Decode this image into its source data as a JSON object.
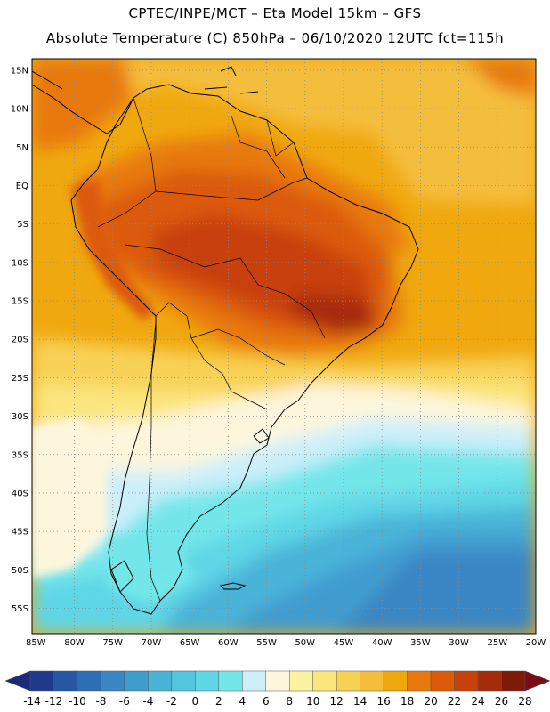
{
  "header": {
    "line1": "CPTEC/INPE/MCT –  Eta Model 15km – GFS",
    "line2": "Absolute Temperature (C) 850hPa – 06/10/2020 12UTC fct=115h"
  },
  "map": {
    "lat_labels": [
      "15N",
      "10N",
      "5N",
      "EQ",
      "5S",
      "10S",
      "15S",
      "20S",
      "25S",
      "30S",
      "35S",
      "40S",
      "45S",
      "50S",
      "55S"
    ],
    "lon_labels": [
      "85W",
      "80W",
      "75W",
      "70W",
      "65W",
      "60W",
      "55W",
      "50W",
      "45W",
      "40W",
      "35W",
      "30W",
      "25W",
      "20W"
    ],
    "lat_range": [
      16.5,
      -58.3
    ],
    "lon_range": [
      -85.5,
      -20
    ]
  },
  "colorbar": {
    "ticks": [
      "-14",
      "-12",
      "-10",
      "-8",
      "-6",
      "-4",
      "-2",
      "0",
      "2",
      "4",
      "6",
      "8",
      "10",
      "12",
      "14",
      "16",
      "18",
      "20",
      "22",
      "24",
      "26",
      "28"
    ],
    "colors": [
      "#1f3a8c",
      "#2557a3",
      "#2d6eb4",
      "#3b86c4",
      "#3f9ccf",
      "#49b3d8",
      "#53c5e0",
      "#5fd6e6",
      "#73e6ea",
      "#cceffa",
      "#fdf6dd",
      "#fcf3a0",
      "#fbe57d",
      "#f8d257",
      "#f4be3c",
      "#f0a80f",
      "#e8790e",
      "#dc5a0a",
      "#c8410a",
      "#a52c0a",
      "#7d1a0a"
    ],
    "under_color": "#1b2b78",
    "over_color": "#7b0c16"
  }
}
